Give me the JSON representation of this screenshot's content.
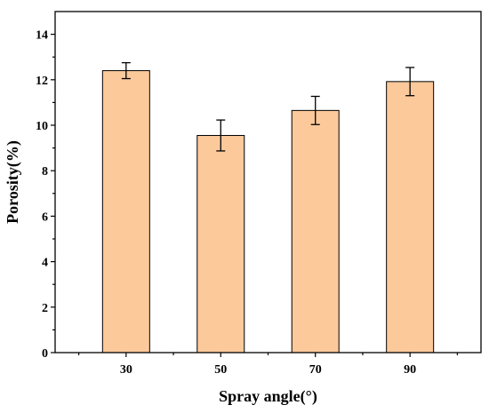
{
  "chart_data": {
    "type": "bar",
    "title": "",
    "xlabel": "Spray angle(°)",
    "ylabel": "Porosity(%)",
    "categories": [
      "30",
      "50",
      "70",
      "90"
    ],
    "values": [
      12.4,
      9.55,
      10.65,
      11.92
    ],
    "errors": [
      0.35,
      0.68,
      0.62,
      0.62
    ],
    "ylim": [
      0,
      15
    ],
    "yticks": [
      "0",
      "2",
      "4",
      "6",
      "8",
      "10",
      "12",
      "14"
    ],
    "bar_color": "#FCC99B",
    "grid": false,
    "legend": "none"
  }
}
